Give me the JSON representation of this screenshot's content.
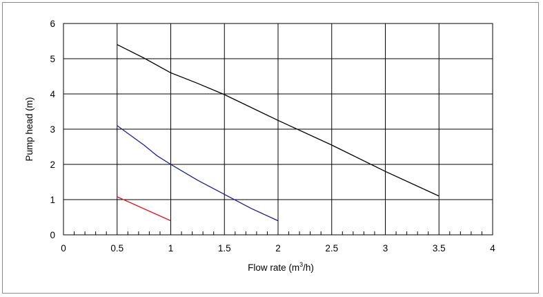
{
  "chart_data": {
    "type": "line",
    "title": "",
    "xlabel": "Flow  rate (m",
    "xlabel_superscript": "3",
    "xlabel_suffix": "/h)",
    "ylabel": "Pump head (m)",
    "xlim": [
      0,
      4
    ],
    "ylim": [
      0,
      6
    ],
    "grid": true,
    "legend": "none",
    "x_ticks": [
      {
        "value": 0,
        "label": "0"
      },
      {
        "value": 0.5,
        "label": "0.5"
      },
      {
        "value": 1,
        "label": "1"
      },
      {
        "value": 1.5,
        "label": "1.5"
      },
      {
        "value": 2,
        "label": "2"
      },
      {
        "value": 2.5,
        "label": "2.5"
      },
      {
        "value": 3,
        "label": "3"
      },
      {
        "value": 3.5,
        "label": "3.5"
      },
      {
        "value": 4,
        "label": "4"
      }
    ],
    "y_ticks": [
      {
        "value": 0,
        "label": "0"
      },
      {
        "value": 1,
        "label": "1"
      },
      {
        "value": 2,
        "label": "2"
      },
      {
        "value": 3,
        "label": "3"
      },
      {
        "value": 4,
        "label": "4"
      },
      {
        "value": 5,
        "label": "5"
      },
      {
        "value": 6,
        "label": "6"
      }
    ],
    "series": [
      {
        "color": "#000000",
        "points": [
          [
            0.5,
            5.4
          ],
          [
            0.75,
            5.02
          ],
          [
            1.0,
            4.6
          ],
          [
            1.25,
            4.3
          ],
          [
            1.5,
            3.98
          ],
          [
            2.0,
            3.25
          ],
          [
            2.5,
            2.55
          ],
          [
            3.0,
            1.8
          ],
          [
            3.5,
            1.1
          ]
        ]
      },
      {
        "color": "#1c1c8c",
        "points": [
          [
            0.5,
            3.1
          ],
          [
            0.75,
            2.55
          ],
          [
            0.87,
            2.25
          ],
          [
            1.0,
            2.0
          ],
          [
            1.25,
            1.55
          ],
          [
            1.5,
            1.15
          ],
          [
            1.75,
            0.75
          ],
          [
            2.0,
            0.4
          ]
        ]
      },
      {
        "color": "#e0141e",
        "points": [
          [
            0.5,
            1.08
          ],
          [
            1.0,
            0.4
          ]
        ]
      }
    ]
  }
}
